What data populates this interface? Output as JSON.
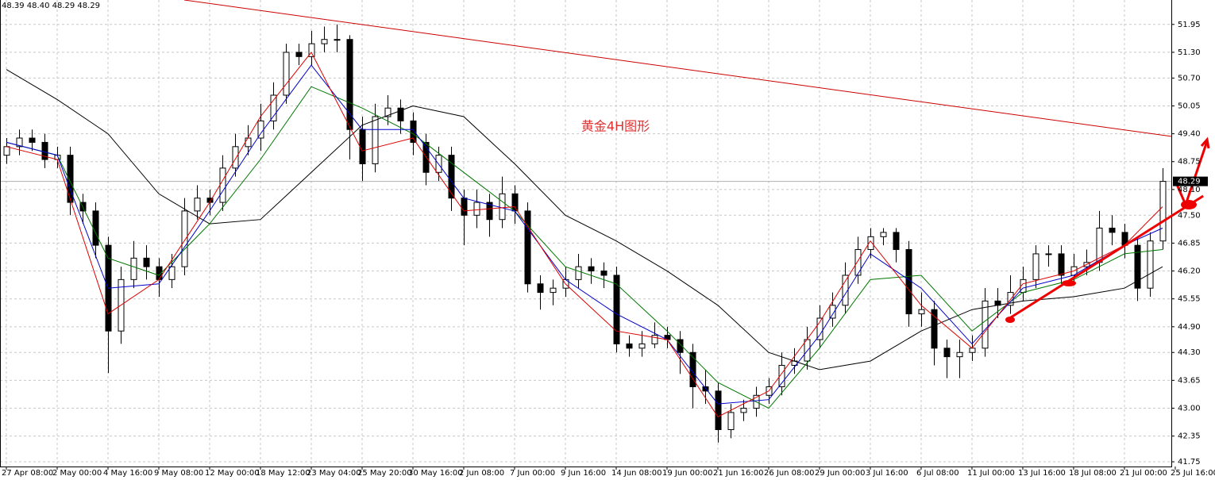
{
  "chart_data": {
    "type": "candlestick",
    "header": "48.39 48.40 48.29 48.29",
    "annotation": "黄金4H图形",
    "xlim": [
      -0.5,
      91.69
    ],
    "ylim": [
      41.64,
      52.52
    ],
    "grid": true,
    "last_price": 48.29,
    "yticks": [
      51.95,
      {
        "value": 51.3,
        "label": "51.30"
      },
      {
        "value": 50.7,
        "label": "50.70"
      },
      50.05,
      {
        "value": 49.4,
        "label": "49.40"
      },
      48.75,
      {
        "value": 48.1,
        "label": "48.10"
      },
      {
        "value": 47.5,
        "label": "47.50"
      },
      46.85,
      {
        "value": 46.2,
        "label": "46.20"
      },
      45.55,
      {
        "value": 44.9,
        "label": "44.90"
      },
      {
        "value": 44.3,
        "label": "44.30"
      },
      43.65,
      {
        "value": 43.0,
        "label": "43.00"
      },
      42.35,
      41.75
    ],
    "xticks": [
      {
        "value": 0,
        "label": "27 Apr 08:00"
      },
      {
        "value": 4,
        "label": "2 May 00:00"
      },
      {
        "value": 8,
        "label": "4 May 16:00"
      },
      {
        "value": 12,
        "label": "9 May 08:00"
      },
      {
        "value": 16,
        "label": "12 May 00:00"
      },
      {
        "value": 20,
        "label": "18 May 12:00"
      },
      {
        "value": 24,
        "label": "23 May 04:00"
      },
      {
        "value": 28,
        "label": "25 May 20:00"
      },
      {
        "value": 32,
        "label": "30 May 16:00"
      },
      {
        "value": 36,
        "label": "2 Jun 08:00"
      },
      {
        "value": 40,
        "label": "7 Jun 00:00"
      },
      {
        "value": 44,
        "label": "9 Jun 16:00"
      },
      {
        "value": 48,
        "label": "14 Jun 08:00"
      },
      {
        "value": 52,
        "label": "19 Jun 00:00"
      },
      {
        "value": 56,
        "label": "21 Jun 16:00"
      },
      {
        "value": 60,
        "label": "26 Jun 08:00"
      },
      {
        "value": 64,
        "label": "29 Jun 00:00"
      },
      {
        "value": 68,
        "label": "3 Jul 16:00"
      },
      {
        "value": 72,
        "label": "6 Jul 08:00"
      },
      {
        "value": 76,
        "label": "11 Jul 00:00"
      },
      {
        "value": 80,
        "label": "13 Jul 16:00"
      },
      {
        "value": 84,
        "label": "18 Jul 08:00"
      },
      {
        "value": 88,
        "label": "21 Jul 00:00"
      },
      {
        "value": 92,
        "label": "25 Jul 16:00"
      }
    ],
    "candles": [
      [
        48.9,
        49.3,
        48.7,
        49.1
      ],
      [
        49.1,
        49.5,
        48.9,
        49.3
      ],
      [
        49.3,
        49.5,
        49.0,
        49.2
      ],
      [
        49.2,
        49.4,
        48.6,
        48.8
      ],
      [
        48.8,
        49.1,
        48.6,
        48.9
      ],
      [
        48.9,
        49.1,
        47.5,
        47.8
      ],
      [
        47.8,
        48.0,
        47.3,
        47.6
      ],
      [
        47.6,
        47.8,
        46.5,
        46.8
      ],
      [
        46.8,
        47.0,
        43.82,
        44.8
      ],
      [
        44.8,
        46.3,
        44.5,
        46.0
      ],
      [
        46.0,
        46.9,
        45.8,
        46.5
      ],
      [
        46.5,
        46.8,
        46.0,
        46.3
      ],
      [
        46.3,
        46.5,
        45.6,
        46.0
      ],
      [
        46.0,
        46.6,
        45.8,
        46.3
      ],
      [
        46.3,
        47.9,
        46.1,
        47.6
      ],
      [
        47.6,
        48.2,
        47.4,
        47.9
      ],
      [
        47.9,
        48.1,
        47.5,
        47.8
      ],
      [
        47.8,
        48.9,
        47.6,
        48.6
      ],
      [
        48.6,
        49.4,
        48.4,
        49.1
      ],
      [
        49.1,
        49.6,
        48.9,
        49.3
      ],
      [
        49.3,
        50.1,
        49.0,
        49.7
      ],
      [
        49.7,
        50.6,
        49.5,
        50.3
      ],
      [
        50.3,
        51.5,
        50.1,
        51.3
      ],
      [
        51.3,
        51.5,
        51.0,
        51.2
      ],
      [
        51.2,
        51.8,
        51.0,
        51.5
      ],
      [
        51.5,
        51.9,
        51.3,
        51.6
      ],
      [
        51.6,
        51.95,
        51.3,
        51.6
      ],
      [
        51.6,
        51.7,
        48.8,
        49.5
      ],
      [
        49.5,
        49.8,
        48.3,
        48.7
      ],
      [
        48.7,
        50.1,
        48.5,
        49.8
      ],
      [
        49.8,
        50.3,
        49.6,
        50.0
      ],
      [
        50.0,
        50.2,
        49.4,
        49.7
      ],
      [
        49.7,
        49.9,
        48.9,
        49.2
      ],
      [
        49.2,
        49.4,
        48.2,
        48.5
      ],
      [
        48.5,
        49.1,
        48.3,
        48.9
      ],
      [
        48.9,
        49.1,
        47.6,
        47.9
      ],
      [
        47.9,
        48.1,
        46.8,
        47.5
      ],
      [
        47.5,
        48.1,
        47.2,
        47.8
      ],
      [
        47.8,
        48.0,
        47.0,
        47.4
      ],
      [
        47.4,
        48.4,
        47.2,
        48.0
      ],
      [
        48.0,
        48.2,
        47.3,
        47.6
      ],
      [
        47.6,
        47.8,
        45.7,
        45.9
      ],
      [
        45.9,
        46.1,
        45.3,
        45.7
      ],
      [
        45.7,
        46.0,
        45.4,
        45.8
      ],
      [
        45.8,
        46.3,
        45.6,
        46.0
      ],
      [
        46.0,
        46.6,
        45.8,
        46.3
      ],
      [
        46.3,
        46.5,
        45.9,
        46.2
      ],
      [
        46.2,
        46.4,
        45.8,
        46.1
      ],
      [
        46.1,
        46.3,
        44.3,
        44.5
      ],
      [
        44.5,
        44.7,
        44.2,
        44.4
      ],
      [
        44.4,
        44.8,
        44.2,
        44.5
      ],
      [
        44.5,
        45.0,
        44.4,
        44.7
      ],
      [
        44.7,
        44.9,
        44.4,
        44.6
      ],
      [
        44.6,
        44.8,
        43.8,
        44.3
      ],
      [
        44.3,
        44.5,
        43.0,
        43.5
      ],
      [
        43.5,
        43.9,
        43.1,
        43.4
      ],
      [
        43.4,
        43.6,
        42.2,
        42.5
      ],
      [
        42.5,
        43.1,
        42.3,
        42.9
      ],
      [
        42.9,
        43.2,
        42.7,
        43.0
      ],
      [
        43.0,
        43.5,
        42.8,
        43.3
      ],
      [
        43.3,
        43.7,
        43.1,
        43.5
      ],
      [
        43.5,
        44.3,
        43.3,
        44.0
      ],
      [
        44.0,
        44.4,
        43.8,
        44.1
      ],
      [
        44.1,
        44.9,
        43.9,
        44.6
      ],
      [
        44.6,
        45.4,
        44.4,
        45.1
      ],
      [
        45.1,
        45.7,
        44.9,
        45.4
      ],
      [
        45.4,
        46.4,
        45.2,
        46.1
      ],
      [
        46.1,
        47.0,
        45.9,
        46.7
      ],
      [
        46.7,
        47.2,
        46.5,
        47.0
      ],
      [
        47.0,
        47.2,
        46.8,
        47.1
      ],
      [
        47.1,
        47.2,
        46.4,
        46.7
      ],
      [
        46.7,
        46.9,
        44.9,
        45.2
      ],
      [
        45.2,
        45.7,
        44.9,
        45.3
      ],
      [
        45.3,
        45.5,
        44.0,
        44.4
      ],
      [
        44.4,
        44.6,
        43.7,
        44.2
      ],
      [
        44.2,
        44.6,
        43.7,
        44.3
      ],
      [
        44.3,
        44.7,
        44.1,
        44.4
      ],
      [
        44.4,
        45.8,
        44.2,
        45.5
      ],
      [
        45.5,
        45.8,
        45.1,
        45.4
      ],
      [
        45.4,
        46.1,
        45.2,
        45.7
      ],
      [
        45.7,
        46.3,
        45.5,
        46.0
      ],
      [
        46.0,
        46.8,
        45.8,
        46.6
      ],
      [
        46.6,
        46.8,
        46.3,
        46.6
      ],
      [
        46.6,
        46.8,
        45.9,
        46.1
      ],
      [
        46.1,
        46.6,
        45.9,
        46.3
      ],
      [
        46.3,
        46.7,
        46.1,
        46.4
      ],
      [
        46.4,
        47.6,
        46.2,
        47.2
      ],
      [
        47.2,
        47.5,
        46.8,
        47.1
      ],
      [
        47.1,
        47.3,
        46.5,
        46.8
      ],
      [
        46.8,
        47.0,
        45.5,
        45.8
      ],
      [
        45.8,
        47.1,
        45.6,
        46.9
      ],
      [
        46.9,
        48.6,
        46.7,
        48.29
      ]
    ],
    "lines_x": [
      0,
      4,
      8,
      12,
      16,
      20,
      24,
      28,
      32,
      36,
      40,
      44,
      48,
      52,
      56,
      60,
      64,
      68,
      72,
      76,
      80,
      84,
      88,
      91
    ],
    "series": [
      {
        "color": "#000000",
        "values": [
          50.9,
          50.2,
          49.4,
          48.0,
          47.3,
          47.4,
          48.5,
          49.6,
          50.05,
          49.8,
          48.7,
          47.5,
          46.9,
          46.2,
          45.4,
          44.3,
          43.9,
          44.1,
          44.8,
          45.3,
          45.5,
          45.6,
          45.8,
          46.3
        ]
      },
      {
        "color": "#007700",
        "values": [
          49.2,
          48.9,
          46.5,
          46.1,
          47.3,
          48.8,
          50.5,
          50.0,
          49.4,
          48.5,
          47.6,
          46.3,
          45.9,
          44.8,
          43.6,
          43.0,
          44.4,
          46.0,
          46.1,
          44.8,
          45.7,
          46.0,
          46.6,
          46.7
        ]
      },
      {
        "color": "#0000cc",
        "values": [
          49.2,
          48.9,
          45.8,
          45.9,
          47.6,
          49.4,
          51.0,
          49.5,
          49.5,
          47.9,
          47.6,
          46.0,
          45.2,
          44.6,
          43.1,
          43.2,
          44.7,
          46.6,
          45.8,
          44.5,
          45.8,
          46.1,
          46.8,
          47.2
        ]
      },
      {
        "color": "#dd0000",
        "values": [
          49.1,
          48.8,
          45.2,
          46.0,
          47.8,
          49.8,
          51.3,
          49.0,
          49.3,
          47.6,
          47.7,
          45.9,
          44.8,
          44.6,
          42.8,
          43.4,
          45.0,
          46.9,
          45.4,
          44.4,
          45.9,
          46.2,
          46.8,
          47.7
        ]
      }
    ],
    "trendlines": [
      {
        "color": "#cc0000",
        "width": 1,
        "x": [
          14,
          91.69
        ],
        "y": [
          52.52,
          49.34
        ]
      },
      {
        "color": "#ee0000",
        "width": 3,
        "x": [
          78.75,
          94.2
        ],
        "y": [
          45.06,
          47.95
        ]
      }
    ]
  }
}
